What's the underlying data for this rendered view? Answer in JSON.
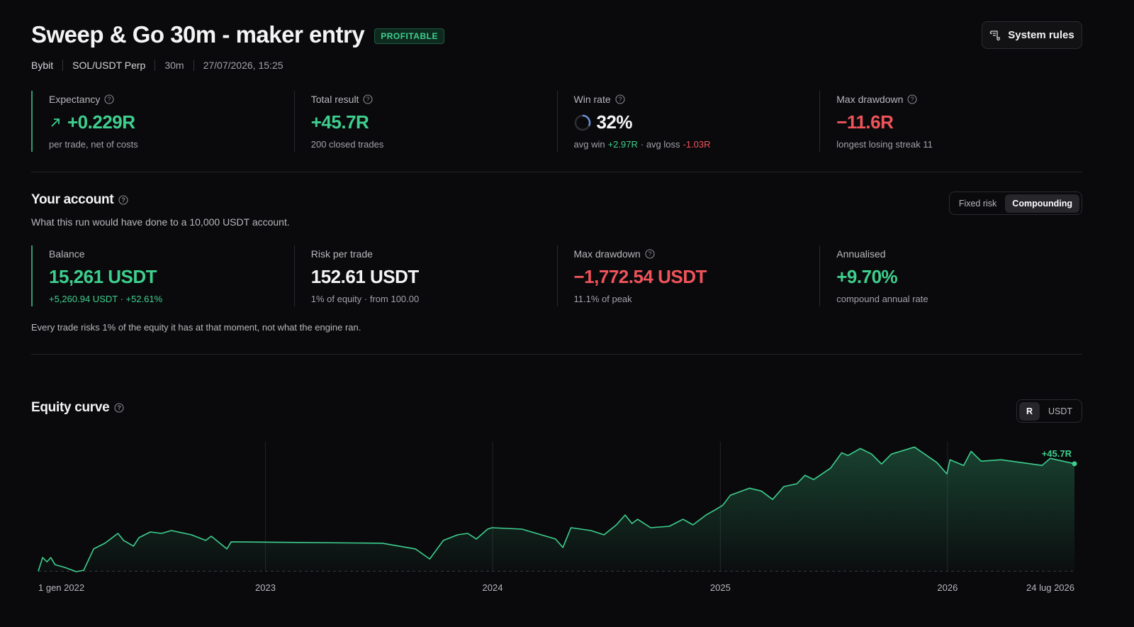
{
  "header": {
    "title": "Sweep & Go 30m - maker entry",
    "badge": "PROFITABLE",
    "meta": [
      "Bybit",
      "SOL/USDT Perp",
      "30m",
      "27/07/2026, 15:25"
    ],
    "button": "System rules"
  },
  "summary": [
    {
      "label": "Expectancy",
      "help": true,
      "icon": "arrow",
      "value": "+0.229R",
      "value_color": "#3ecf8e",
      "note": [
        {
          "text": "per trade, net of costs"
        }
      ]
    },
    {
      "label": "Total result",
      "help": true,
      "value": "+45.7R",
      "value_color": "#3ecf8e",
      "note": [
        {
          "text": "200 closed trades"
        }
      ]
    },
    {
      "label": "Win rate",
      "help": true,
      "icon": "ring",
      "value": "32%",
      "value_color": "#f4f4f5",
      "note": [
        {
          "text": "avg win"
        },
        {
          "text": "+2.97R",
          "color": "#3ecf8e"
        },
        {
          "text": "· avg loss"
        },
        {
          "text": "-1.03R",
          "color": "#f0545a"
        }
      ]
    },
    {
      "label": "Max drawdown",
      "help": true,
      "value": "−11.6R",
      "value_color": "#f0545a",
      "note": [
        {
          "text": "longest losing streak 11"
        }
      ]
    }
  ],
  "account": {
    "title": "Your account",
    "description": "What this run would have done to a 10,000 USDT account.",
    "toggle": [
      "Fixed risk",
      "Compounding"
    ],
    "active": 1,
    "stats": [
      {
        "label": "Balance",
        "value": "15,261 USDT",
        "value_color": "#3ecf8e",
        "note": [
          {
            "text": "+5,260.94 USDT · +52.61%",
            "color": "#3ecf8e"
          }
        ]
      },
      {
        "label": "Risk per trade",
        "value": "152.61 USDT",
        "value_color": "#f4f4f5",
        "note": [
          {
            "text": "1% of equity · from 100.00"
          }
        ]
      },
      {
        "label": "Max drawdown",
        "help": true,
        "value": "−1,772.54 USDT",
        "value_color": "#f0545a",
        "note": [
          {
            "text": "11.1% of peak"
          }
        ]
      },
      {
        "label": "Annualised",
        "value": "+9.70%",
        "value_color": "#3ecf8e",
        "note": [
          {
            "text": "compound annual rate"
          }
        ]
      }
    ],
    "footnote": "Every trade risks 1% of the equity it has at that moment, not what the engine ran."
  },
  "equity": {
    "title": "Equity curve",
    "toggle": [
      "R",
      "USDT"
    ],
    "active": 0
  },
  "chart_data": {
    "type": "line",
    "color": "#3ecf8e",
    "annotation": "+45.7R",
    "xlim": [
      "2022-01-01",
      "2026-07-24"
    ],
    "xticks": [
      {
        "value": "2022-01-01",
        "label": "1 gen 2022"
      },
      {
        "value": "2023-01-01",
        "label": "2023"
      },
      {
        "value": "2024-01-01",
        "label": "2024"
      },
      {
        "value": "2025-01-01",
        "label": "2025"
      },
      {
        "value": "2026-01-01",
        "label": "2026"
      },
      {
        "value": "2026-07-24",
        "label": "24 lug 2026"
      }
    ],
    "ylim": [
      -2,
      55
    ],
    "grid": true,
    "x": [
      "2022-01-01",
      "2022-01-08",
      "2022-01-15",
      "2022-01-21",
      "2022-01-28",
      "2022-02-13",
      "2022-03-03",
      "2022-03-15",
      "2022-03-31",
      "2022-04-18",
      "2022-05-09",
      "2022-05-18",
      "2022-06-03",
      "2022-06-12",
      "2022-06-30",
      "2022-07-18",
      "2022-08-03",
      "2022-09-04",
      "2022-09-27",
      "2022-10-06",
      "2022-10-31",
      "2022-11-07",
      "2023-07-08",
      "2023-08-30",
      "2023-09-22",
      "2023-10-14",
      "2023-11-06",
      "2023-11-22",
      "2023-12-06",
      "2023-12-24",
      "2023-12-31",
      "2024-02-17",
      "2024-04-11",
      "2024-04-23",
      "2024-05-06",
      "2024-06-07",
      "2024-06-28",
      "2024-07-18",
      "2024-08-01",
      "2024-08-12",
      "2024-08-21",
      "2024-09-11",
      "2024-10-11",
      "2024-11-02",
      "2024-11-18",
      "2024-12-09",
      "2024-12-25",
      "2025-01-05",
      "2025-01-17",
      "2025-02-17",
      "2025-03-08",
      "2025-03-26",
      "2025-04-13",
      "2025-05-04",
      "2025-05-17",
      "2025-05-31",
      "2025-06-27",
      "2025-07-15",
      "2025-07-25",
      "2025-08-14",
      "2025-09-01",
      "2025-09-17",
      "2025-10-03",
      "2025-11-09",
      "2025-12-15",
      "2025-12-31",
      "2026-01-05",
      "2026-01-27",
      "2026-02-08",
      "2026-02-24",
      "2026-03-28",
      "2026-06-02",
      "2026-06-15",
      "2026-07-24"
    ],
    "values": [
      0,
      5.8,
      4.0,
      5.8,
      2.8,
      1.6,
      -0.2,
      0.4,
      9.5,
      11.9,
      16.1,
      13.1,
      10.7,
      14.3,
      16.7,
      16.1,
      17.3,
      15.5,
      13.1,
      14.9,
      9.5,
      12.5,
      11.9,
      9.5,
      5.2,
      13.1,
      15.5,
      16.1,
      13.7,
      17.9,
      18.5,
      17.9,
      13.7,
      10.1,
      18.5,
      17.3,
      15.5,
      19.7,
      23.9,
      20.3,
      22.1,
      18.5,
      19.1,
      22.1,
      19.7,
      23.9,
      26.3,
      28.1,
      32.3,
      35.3,
      34.1,
      30.5,
      36.0,
      37.2,
      40.8,
      39.0,
      43.8,
      50.4,
      49.2,
      52.2,
      49.8,
      45.6,
      49.8,
      52.8,
      46.2,
      41.4,
      47.4,
      45.0,
      51.0,
      46.8,
      47.4,
      45.0,
      48.0,
      45.7
    ]
  }
}
